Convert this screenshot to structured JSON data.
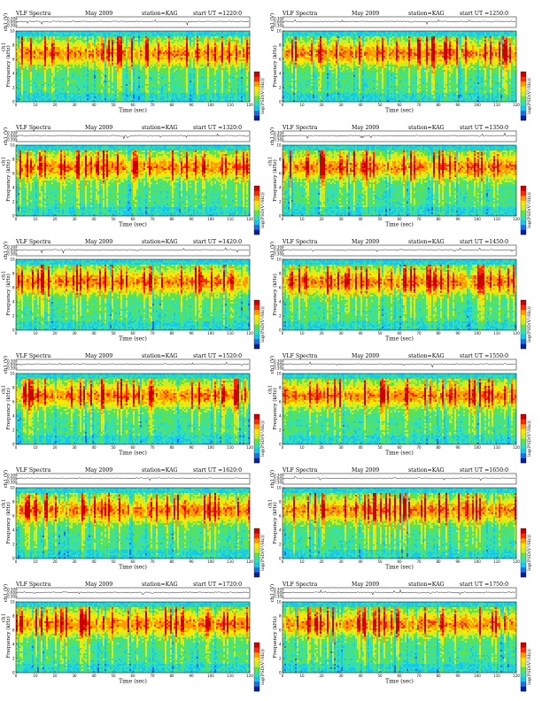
{
  "chart_data": [
    {
      "type": "heatmap",
      "title": "VLF Spectra",
      "date": "May 2009",
      "station": "station=KAG",
      "start": "start UT =1220:0",
      "ch_label": "ch1 (V)",
      "ylabel": "Frequency (kHz)",
      "channel": "ch1",
      "xlabel": "Time (sec)",
      "cbar_label": "log(PSD(V²/Hz))",
      "xlim": [
        0,
        120
      ],
      "ylim": [
        0,
        10
      ],
      "wave_ylim": [
        -0.3,
        0.3
      ],
      "xticks": [
        "0",
        "10",
        "20",
        "30",
        "40",
        "50",
        "60",
        "70",
        "80",
        "90",
        "100",
        "110",
        "120"
      ],
      "yticks": [
        "0",
        "2",
        "4",
        "6",
        "8",
        "10"
      ],
      "wave_yticks": [
        "0.30",
        "0.00",
        "-0.30"
      ]
    },
    {
      "type": "heatmap",
      "title": "VLF Spectra",
      "date": "May 2009",
      "station": "station=KAG",
      "start": "start UT =1250:0",
      "ch_label": "ch1 (V)",
      "ylabel": "Frequency (kHz)",
      "channel": "",
      "xlabel": "Time (sec)",
      "cbar_label": "log(PSD(V²/Hz))",
      "xlim": [
        0,
        120
      ],
      "ylim": [
        0,
        10
      ],
      "wave_ylim": [
        -0.3,
        0.3
      ],
      "xticks": [
        "0",
        "10",
        "20",
        "30",
        "40",
        "50",
        "60",
        "70",
        "80",
        "90",
        "100",
        "110",
        "120"
      ],
      "yticks": [
        "0",
        "2",
        "4",
        "6",
        "8",
        "10"
      ],
      "wave_yticks": [
        "0.30",
        "0.00",
        "-0.30"
      ]
    },
    {
      "type": "heatmap",
      "title": "VLF Spectra",
      "date": "May 2009",
      "station": "station=KAG",
      "start": "start UT =1320:0",
      "ch_label": "ch1 (V)",
      "ylabel": "Frequency (kHz)",
      "channel": "ch1",
      "xlabel": "Time (sec)",
      "cbar_label": "log(PSD(V²/Hz))",
      "xlim": [
        0,
        120
      ],
      "ylim": [
        0,
        10
      ],
      "wave_ylim": [
        -0.3,
        0.3
      ],
      "xticks": [
        "0",
        "10",
        "20",
        "30",
        "40",
        "50",
        "60",
        "70",
        "80",
        "90",
        "100",
        "110",
        "120"
      ],
      "yticks": [
        "0",
        "2",
        "4",
        "6",
        "8",
        "10"
      ],
      "wave_yticks": [
        "0.30",
        "0.00",
        "-0.30"
      ]
    },
    {
      "type": "heatmap",
      "title": "VLF Spectra",
      "date": "May 2009",
      "station": "station=KAG",
      "start": "start UT =1350:0",
      "ch_label": "ch1 (V)",
      "ylabel": "Frequency (kHz)",
      "channel": "ch1",
      "xlabel": "Time (sec)",
      "cbar_label": "log(PSD(V²/Hz))",
      "xlim": [
        0,
        120
      ],
      "ylim": [
        0,
        10
      ],
      "wave_ylim": [
        -0.3,
        0.3
      ],
      "xticks": [
        "0",
        "10",
        "20",
        "30",
        "40",
        "50",
        "60",
        "70",
        "80",
        "90",
        "100",
        "110",
        "120"
      ],
      "yticks": [
        "0",
        "2",
        "4",
        "6",
        "8",
        "10"
      ],
      "wave_yticks": [
        "0.30",
        "0.00",
        "-0.30"
      ]
    },
    {
      "type": "heatmap",
      "title": "VLF Spectra",
      "date": "May 2009",
      "station": "station=KAG",
      "start": "start UT =1420:0",
      "ch_label": "ch1 (V)",
      "ylabel": "Frequency (kHz)",
      "channel": "ch1",
      "xlabel": "Time (sec)",
      "cbar_label": "log(PSD(V²/Hz))",
      "xlim": [
        0,
        120
      ],
      "ylim": [
        0,
        10
      ],
      "wave_ylim": [
        -0.3,
        0.3
      ],
      "xticks": [
        "0",
        "10",
        "20",
        "30",
        "40",
        "50",
        "60",
        "70",
        "80",
        "90",
        "100",
        "110",
        "120"
      ],
      "yticks": [
        "0",
        "2",
        "4",
        "6",
        "8",
        "10"
      ],
      "wave_yticks": [
        "0.30",
        "0.00",
        "-0.30"
      ]
    },
    {
      "type": "heatmap",
      "title": "VLF Spectra",
      "date": "May 2009",
      "station": "station=KAG",
      "start": "start UT =1450:0",
      "ch_label": "ch1 (V)",
      "ylabel": "Frequency (kHz)",
      "channel": "",
      "xlabel": "Time (sec)",
      "cbar_label": "log(PSD(V²/Hz))",
      "xlim": [
        0,
        120
      ],
      "ylim": [
        0,
        10
      ],
      "wave_ylim": [
        -0.3,
        0.3
      ],
      "xticks": [
        "0",
        "10",
        "20",
        "30",
        "40",
        "50",
        "60",
        "70",
        "80",
        "90",
        "100",
        "110",
        "120"
      ],
      "yticks": [
        "0",
        "2",
        "4",
        "6",
        "8",
        "10"
      ],
      "wave_yticks": [
        "0.30",
        "0.00",
        "-0.30"
      ]
    },
    {
      "type": "heatmap",
      "title": "VLF Spectra",
      "date": "May 2009",
      "station": "station=KAG",
      "start": "start UT =1520:0",
      "ch_label": "ch1 (V)",
      "ylabel": "Frequency (kHz)",
      "channel": "ch1",
      "xlabel": "Time (sec)",
      "cbar_label": "log(PSD(V²/Hz))",
      "xlim": [
        0,
        120
      ],
      "ylim": [
        0,
        10
      ],
      "wave_ylim": [
        -0.3,
        0.3
      ],
      "xticks": [
        "0",
        "10",
        "20",
        "30",
        "40",
        "50",
        "60",
        "70",
        "80",
        "90",
        "100",
        "110",
        "120"
      ],
      "yticks": [
        "0",
        "2",
        "4",
        "6",
        "8",
        "10"
      ],
      "wave_yticks": [
        "0.30",
        "0.00",
        "-0.30"
      ]
    },
    {
      "type": "heatmap",
      "title": "VLF Spectra",
      "date": "May 2009",
      "station": "station=KAG",
      "start": "start UT =1550:0",
      "ch_label": "ch1 (V)",
      "ylabel": "Frequency (kHz)",
      "channel": "ch1",
      "xlabel": "Time (sec)",
      "cbar_label": "log(PSD(V²/Hz))",
      "xlim": [
        0,
        120
      ],
      "ylim": [
        0,
        10
      ],
      "wave_ylim": [
        -0.3,
        0.3
      ],
      "xticks": [
        "0",
        "10",
        "20",
        "30",
        "40",
        "50",
        "60",
        "70",
        "80",
        "90",
        "100",
        "110",
        "120"
      ],
      "yticks": [
        "0",
        "2",
        "4",
        "6",
        "8",
        "10"
      ],
      "wave_yticks": [
        "0.30",
        "0.00",
        "-0.30"
      ]
    },
    {
      "type": "heatmap",
      "title": "VLF Spectra",
      "date": "May 2009",
      "station": "station=KAG",
      "start": "start UT =1620:0",
      "ch_label": "ch1 (V)",
      "ylabel": "Frequency (kHz)",
      "channel": "ch1",
      "xlabel": "Time (sec)",
      "cbar_label": "log(PSD(V²/Hz))",
      "xlim": [
        0,
        120
      ],
      "ylim": [
        0,
        10
      ],
      "wave_ylim": [
        -0.3,
        0.3
      ],
      "xticks": [
        "0",
        "10",
        "20",
        "30",
        "40",
        "50",
        "60",
        "70",
        "80",
        "90",
        "100",
        "110",
        "120"
      ],
      "yticks": [
        "0",
        "2",
        "4",
        "6",
        "8",
        "10"
      ],
      "wave_yticks": [
        "0.30",
        "0.00",
        "-0.30"
      ]
    },
    {
      "type": "heatmap",
      "title": "VLF Spectra",
      "date": "May 2009",
      "station": "station=KAG",
      "start": "start UT =1650:0",
      "ch_label": "ch1 (V)",
      "ylabel": "Frequency (kHz)",
      "channel": "ch1",
      "xlabel": "Time (sec)",
      "cbar_label": "log(PSD(V²/Hz))",
      "xlim": [
        0,
        120
      ],
      "ylim": [
        0,
        10
      ],
      "wave_ylim": [
        -0.3,
        0.3
      ],
      "xticks": [
        "0",
        "10",
        "20",
        "30",
        "40",
        "50",
        "60",
        "70",
        "80",
        "90",
        "100",
        "110",
        "120"
      ],
      "yticks": [
        "0",
        "2",
        "4",
        "6",
        "8",
        "10"
      ],
      "wave_yticks": [
        "0.30",
        "0.00",
        "-0.30"
      ]
    },
    {
      "type": "heatmap",
      "title": "VLF Spectra",
      "date": "May 2009",
      "station": "station=KAG",
      "start": "start UT =1720:0",
      "ch_label": "ch1 (V)",
      "ylabel": "Frequency (kHz)",
      "channel": "ch1",
      "xlabel": "Time (sec)",
      "cbar_label": "log(PSD(V²/Hz))",
      "xlim": [
        0,
        120
      ],
      "ylim": [
        0,
        10
      ],
      "wave_ylim": [
        -0.3,
        0.3
      ],
      "xticks": [
        "0",
        "10",
        "20",
        "30",
        "40",
        "50",
        "60",
        "70",
        "80",
        "90",
        "100",
        "110",
        "120"
      ],
      "yticks": [
        "0",
        "2",
        "4",
        "6",
        "8",
        "10"
      ],
      "wave_yticks": [
        "0.30",
        "0.00",
        "-0.30"
      ]
    },
    {
      "type": "heatmap",
      "title": "VLF Spectra",
      "date": "May 2009",
      "station": "station=KAG",
      "start": "start UT =1750:0",
      "ch_label": "ch1 (V)",
      "ylabel": "Frequency (kHz)",
      "channel": "",
      "xlabel": "Time (sec)",
      "cbar_label": "log(PSD(V²/Hz))",
      "xlim": [
        0,
        120
      ],
      "ylim": [
        0,
        10
      ],
      "wave_ylim": [
        -0.3,
        0.3
      ],
      "xticks": [
        "0",
        "10",
        "20",
        "30",
        "40",
        "50",
        "60",
        "70",
        "80",
        "90",
        "100",
        "110",
        "120"
      ],
      "yticks": [
        "0",
        "2",
        "4",
        "6",
        "8",
        "10"
      ],
      "wave_yticks": [
        "0.30",
        "0.00",
        "-0.30"
      ]
    }
  ],
  "colors": {
    "colormap": [
      "#0a1f9c",
      "#1e6fe0",
      "#15c8f0",
      "#34e0b0",
      "#5fe24a",
      "#c8ec2a",
      "#ffe600",
      "#ff9a00",
      "#ff2a00",
      "#cc0000"
    ],
    "band_top": "#14c4f0",
    "waveform": "#000000"
  }
}
